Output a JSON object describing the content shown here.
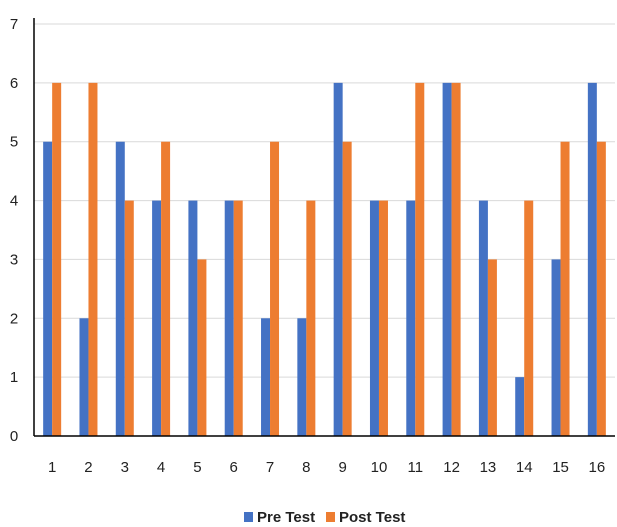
{
  "chart_data": {
    "type": "bar",
    "title": "",
    "xlabel": "",
    "ylabel": "",
    "categories": [
      "1",
      "2",
      "3",
      "4",
      "5",
      "6",
      "7",
      "8",
      "9",
      "10",
      "11",
      "12",
      "13",
      "14",
      "15",
      "16"
    ],
    "series": [
      {
        "name": "Pre Test",
        "color": "#4472C4",
        "values": [
          5,
          2,
          5,
          4,
          4,
          4,
          2,
          2,
          6,
          4,
          4,
          6,
          4,
          1,
          3,
          6
        ]
      },
      {
        "name": "Post Test",
        "color": "#ED7D31",
        "values": [
          6,
          6,
          4,
          5,
          3,
          4,
          5,
          4,
          5,
          4,
          6,
          6,
          3,
          4,
          5,
          5
        ]
      }
    ],
    "ylim": [
      0,
      7
    ],
    "yticks": [
      "0",
      "1",
      "2",
      "3",
      "4",
      "5",
      "6",
      "7"
    ],
    "grid": true,
    "legend_position": "bottom-center"
  }
}
